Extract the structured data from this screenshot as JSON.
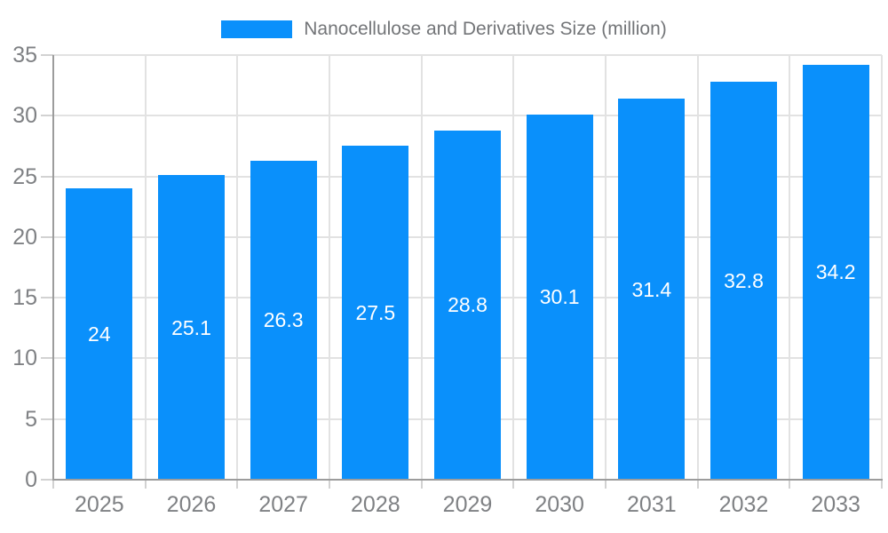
{
  "legend": {
    "label": "Nanocellulose and Derivatives Size (million)",
    "swatch_color": "#0a90fb"
  },
  "chart_data": {
    "type": "bar",
    "title": "Nanocellulose and Derivatives Size (million)",
    "categories": [
      "2025",
      "2026",
      "2027",
      "2028",
      "2029",
      "2030",
      "2031",
      "2032",
      "2033"
    ],
    "values": [
      24,
      25.1,
      26.3,
      27.5,
      28.8,
      30.1,
      31.4,
      32.8,
      34.2
    ],
    "value_labels": [
      "24",
      "25.1",
      "26.3",
      "27.5",
      "28.8",
      "30.1",
      "31.4",
      "32.8",
      "34.2"
    ],
    "series_name": "Nanocellulose and Derivatives Size (million)",
    "xlabel": "",
    "ylabel": "",
    "ylim": [
      0,
      35
    ],
    "yticks": [
      0,
      5,
      10,
      15,
      20,
      25,
      30,
      35
    ],
    "grid": "both",
    "legend_position": "top",
    "bar_color": "#0a90fb",
    "value_label_color": "#ffffff"
  },
  "colors": {
    "bar": "#0a90fb",
    "grid": "#e2e2e2",
    "tick": "#d2d2d2",
    "axis": "#9c9c9c",
    "axis_text": "#7f8184",
    "legend_text": "#737578",
    "background": "#ffffff"
  }
}
